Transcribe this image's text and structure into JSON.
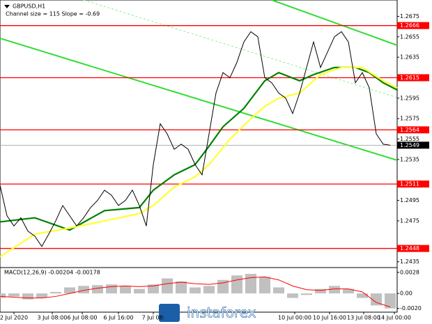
{
  "chart_data": [
    {
      "type": "line",
      "title": "GBPUSD,H1",
      "subtitle": "Channel size = 115 Slope = -0.69",
      "xlim": [
        0,
        114
      ],
      "ylim": [
        1.243,
        1.2691
      ],
      "yticks": [
        1.2675,
        1.2655,
        1.2635,
        1.2595,
        1.2575,
        1.2555,
        1.2535,
        1.2495,
        1.2475,
        1.2435
      ],
      "xticks": [
        {
          "value": 4,
          "label": "2 Jul 2020"
        },
        {
          "value": 15,
          "label": "3 Jul 08:00"
        },
        {
          "value": 23.6,
          "label": "6 Jul 08:00"
        },
        {
          "value": 34,
          "label": "6 Jul 16:00"
        },
        {
          "value": 44,
          "label": "7 Jul 08:"
        },
        {
          "value": 84.6,
          "label": "10 Jul 00:00"
        },
        {
          "value": 94.6,
          "label": "10 Jul 16:00"
        },
        {
          "value": 104.4,
          "label": "13 Jul 08:00"
        },
        {
          "value": 113.2,
          "label": "14 Jul 00:00"
        }
      ],
      "levels": [
        1.2666,
        1.2615,
        1.2564,
        1.2511,
        1.2448
      ],
      "level_color": "#ff0000",
      "last_price": 1.2549,
      "watermark": "instaforex",
      "series": [
        {
          "color": "#000000",
          "x": [
            0,
            2,
            4,
            6,
            8,
            10,
            12,
            14,
            16,
            18,
            20,
            22,
            24,
            26,
            28,
            30,
            32,
            34,
            36,
            38,
            40,
            42,
            44,
            46,
            48,
            50,
            52,
            54,
            56,
            58,
            60,
            62,
            64,
            66,
            68,
            70,
            72,
            74,
            76,
            78,
            80,
            82,
            84,
            86,
            88,
            90,
            92,
            94,
            96,
            98,
            100,
            102,
            104,
            106,
            108,
            110,
            112
          ],
          "values": [
            1.251,
            1.248,
            1.247,
            1.2478,
            1.2465,
            1.246,
            1.245,
            1.2462,
            1.2475,
            1.249,
            1.248,
            1.247,
            1.2478,
            1.2488,
            1.2495,
            1.2505,
            1.25,
            1.249,
            1.2495,
            1.2505,
            1.249,
            1.247,
            1.253,
            1.257,
            1.256,
            1.2545,
            1.255,
            1.2545,
            1.253,
            1.252,
            1.256,
            1.26,
            1.262,
            1.2615,
            1.263,
            1.265,
            1.266,
            1.2655,
            1.2615,
            1.261,
            1.26,
            1.2595,
            1.258,
            1.26,
            1.2625,
            1.265,
            1.2625,
            1.264,
            1.2655,
            1.266,
            1.265,
            1.261,
            1.262,
            1.2605,
            1.256,
            1.255,
            1.2549
          ]
        },
        {
          "color": "#008000",
          "x": [
            0,
            10,
            20,
            30,
            40,
            44,
            50,
            56,
            60,
            64,
            70,
            76,
            80,
            86,
            90,
            96,
            102,
            106,
            110,
            114
          ],
          "values": [
            1.2474,
            1.2478,
            1.2466,
            1.2485,
            1.2488,
            1.2505,
            1.252,
            1.253,
            1.2548,
            1.2567,
            1.2585,
            1.2612,
            1.262,
            1.2612,
            1.2618,
            1.2625,
            1.2625,
            1.262,
            1.261,
            1.2603
          ]
        },
        {
          "color": "#ffff33",
          "x": [
            0,
            10,
            20,
            30,
            40,
            44,
            50,
            56,
            60,
            66,
            72,
            76,
            80,
            86,
            92,
            98,
            104,
            110,
            114
          ],
          "values": [
            1.244,
            1.2462,
            1.2468,
            1.2475,
            1.2482,
            1.249,
            1.2508,
            1.2518,
            1.253,
            1.2555,
            1.2575,
            1.2587,
            1.2595,
            1.26,
            1.2618,
            1.2625,
            1.2625,
            1.2612,
            1.2605
          ]
        }
      ]
    },
    {
      "type": "bar",
      "title": "MACD(12,26,9) -0.00204 -0.00178",
      "color": "#c0c0c0",
      "xlim": [
        0,
        114
      ],
      "ylim": [
        -0.0024,
        0.00335
      ],
      "yticks": [
        0.0028,
        {
          "value": 0,
          "label": "0.00"
        },
        {
          "value": -0.002,
          "label": "-0.0020"
        }
      ],
      "x": [
        0,
        4,
        8,
        12,
        16,
        20,
        24,
        28,
        32,
        36,
        40,
        44,
        48,
        52,
        56,
        60,
        64,
        68,
        72,
        76,
        80,
        84,
        88,
        92,
        96,
        100,
        104,
        108,
        112
      ],
      "values": [
        -0.0006,
        -0.0004,
        -0.0008,
        -0.0006,
        0.0002,
        0.0008,
        0.001,
        0.0011,
        0.0012,
        0.001,
        0.0006,
        0.0012,
        0.002,
        0.0016,
        0.0008,
        0.001,
        0.0018,
        0.0024,
        0.0026,
        0.0022,
        0.0008,
        -0.0006,
        -0.0002,
        0.0006,
        0.001,
        0.0006,
        -0.0006,
        -0.0016,
        -0.002
      ],
      "series": [
        {
          "color": "#ff0000",
          "values": [
            -0.0004,
            -0.0005,
            -0.0006,
            -0.0006,
            -0.0004,
            0,
            0.0004,
            0.0007,
            0.0009,
            0.001,
            0.0009,
            0.001,
            0.0013,
            0.0015,
            0.0013,
            0.0012,
            0.0014,
            0.0018,
            0.0021,
            0.0022,
            0.0018,
            0.001,
            0.0005,
            0.0004,
            0.0006,
            0.0006,
            0.0002,
            -0.0012,
            -0.0018
          ]
        }
      ]
    }
  ]
}
